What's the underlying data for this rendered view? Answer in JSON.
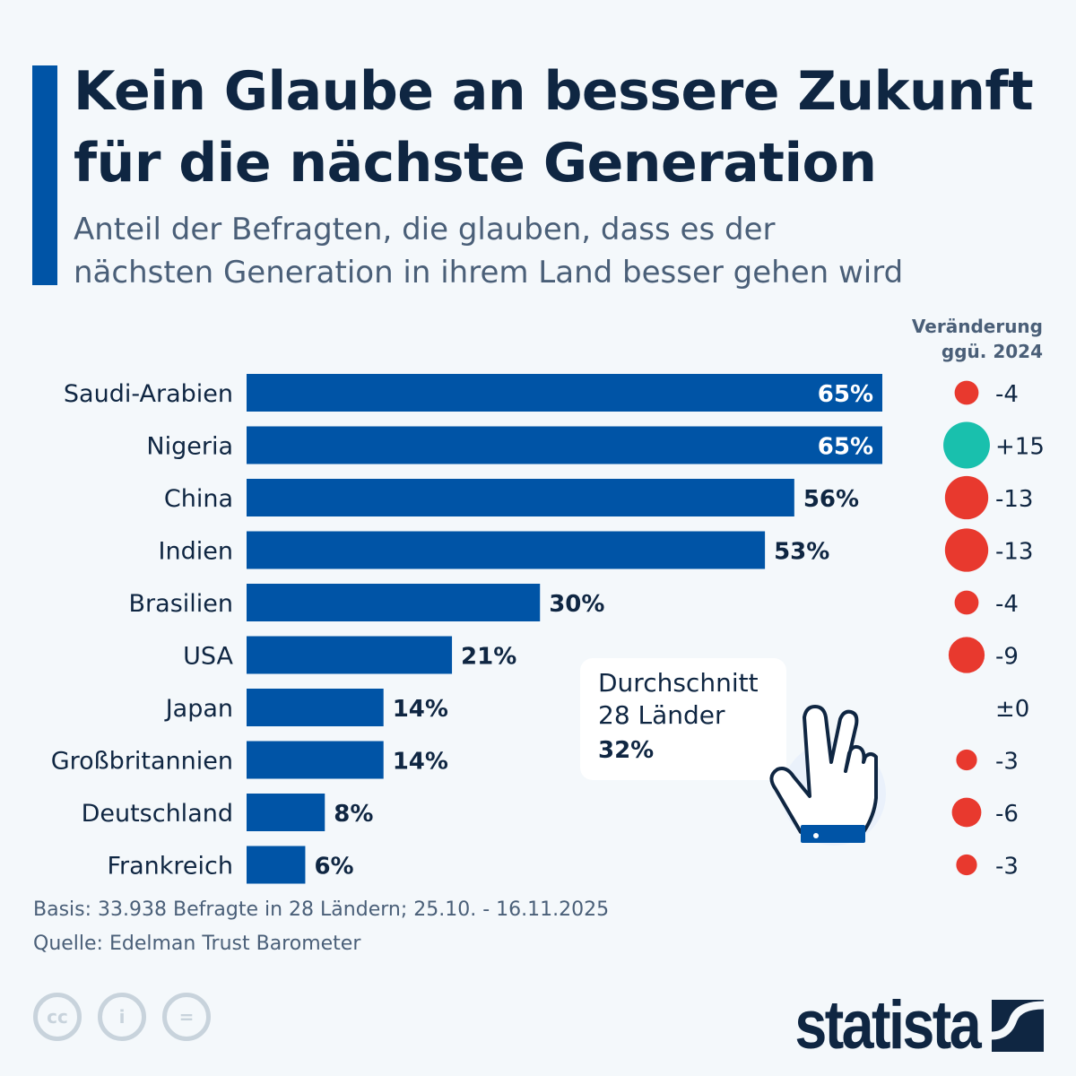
{
  "title_line1": "Kein Glaube an bessere Zukunft",
  "title_line2": "für die nächste Generation",
  "subtitle_line1": "Anteil der Befragten, die glauben, dass es der",
  "subtitle_line2": "nächsten Generation in ihrem Land besser gehen wird",
  "change_header_line1": "Veränderung",
  "change_header_line2": "ggü. 2024",
  "callout": {
    "line1": "Durchschnitt",
    "line2": "28 Länder",
    "value": "32%"
  },
  "footer": {
    "basis": "Basis: 33.938 Befragte in 28 Ländern; 25.10. - 16.11.2025",
    "source": "Quelle: Edelman Trust Barometer"
  },
  "logo": "statista",
  "colors": {
    "bar": "#0054a6",
    "negative": "#e8392e",
    "positive": "#19c0ad",
    "text": "#0f2642"
  },
  "icons": [
    "crossed-fingers-hand-icon",
    "cc-icon",
    "attribution-icon",
    "no-derivatives-icon",
    "statista-logo-icon"
  ],
  "chart_data": {
    "type": "bar",
    "orientation": "horizontal",
    "categories": [
      "Saudi-Arabien",
      "Nigeria",
      "China",
      "Indien",
      "Brasilien",
      "USA",
      "Japan",
      "Großbritannien",
      "Deutschland",
      "Frankreich"
    ],
    "values": [
      65,
      65,
      56,
      53,
      30,
      21,
      14,
      14,
      8,
      6
    ],
    "value_labels": [
      "65%",
      "65%",
      "56%",
      "53%",
      "30%",
      "21%",
      "14%",
      "14%",
      "8%",
      "6%"
    ],
    "unit": "%",
    "xlim": [
      0,
      65
    ],
    "grid": false,
    "change_vs_2024": [
      -4,
      15,
      -13,
      -13,
      -4,
      -9,
      0,
      -3,
      -6,
      -3
    ],
    "change_labels": [
      "-4",
      "+15",
      "-13",
      "-13",
      "-4",
      "-9",
      "±0",
      "-3",
      "-6",
      "-3"
    ],
    "average": 32
  }
}
